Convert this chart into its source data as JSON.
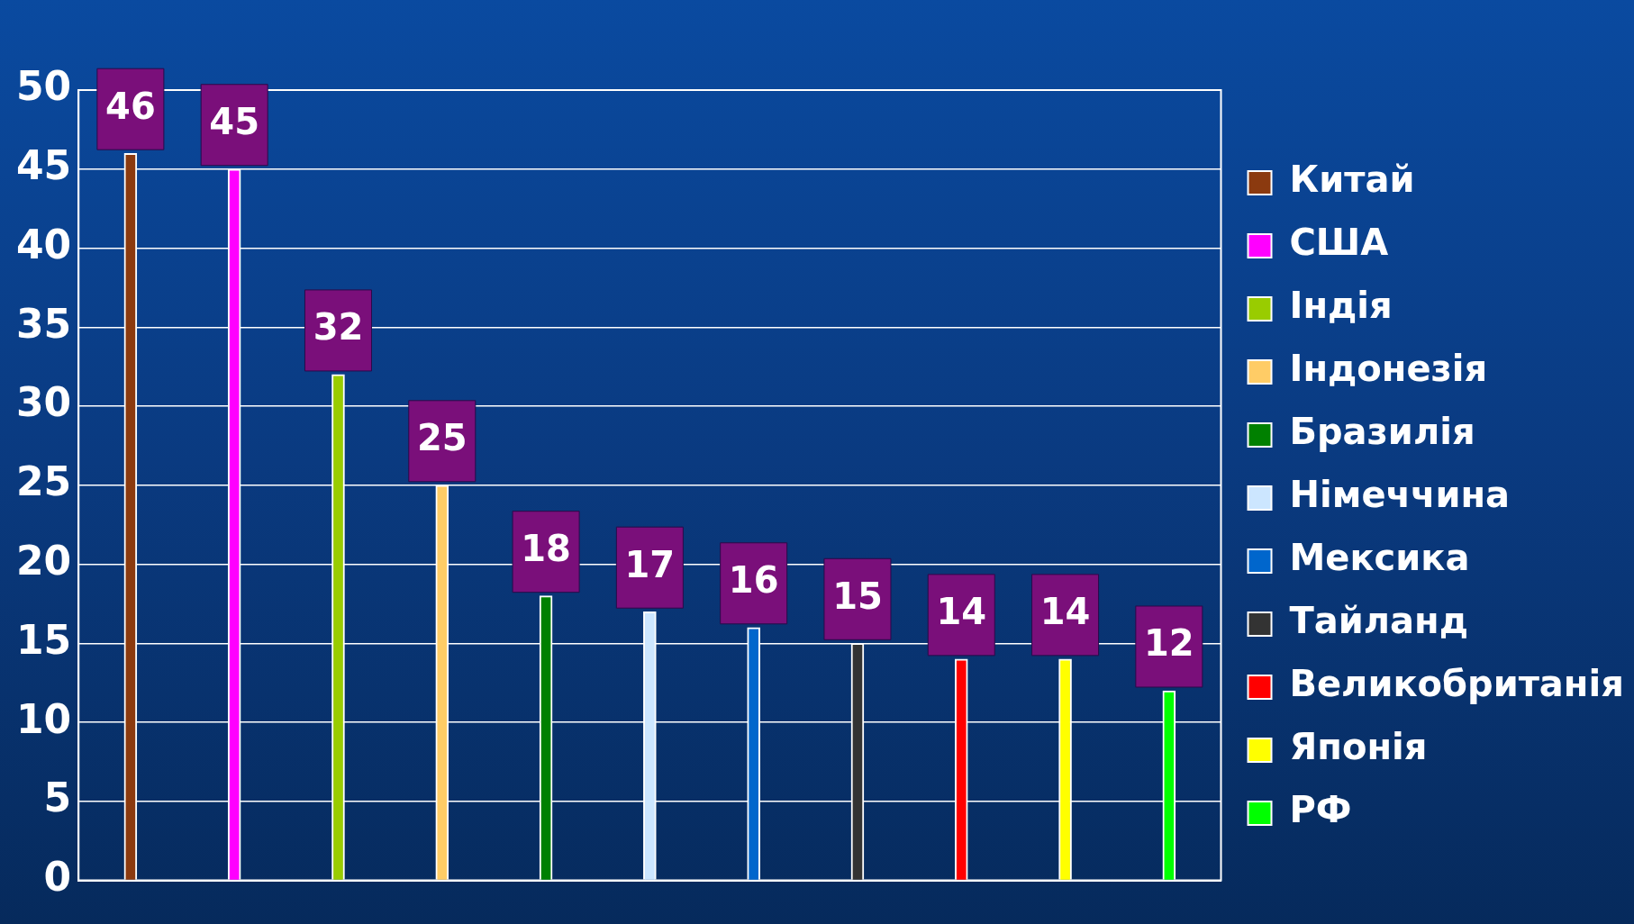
{
  "chart_data": {
    "type": "bar",
    "categories": [
      null,
      null,
      null,
      null,
      null,
      null,
      null,
      null,
      null,
      null,
      null
    ],
    "series": [
      {
        "name": "Китай",
        "color": "#8b3a0f",
        "values": [
          46,
          null,
          null,
          null,
          null,
          null,
          null,
          null,
          null,
          null,
          null
        ]
      },
      {
        "name": "США",
        "color": "#ff00ff",
        "values": [
          null,
          45,
          null,
          null,
          null,
          null,
          null,
          null,
          null,
          null,
          null
        ]
      },
      {
        "name": "Індія",
        "color": "#99cc00",
        "values": [
          null,
          null,
          32,
          null,
          null,
          null,
          null,
          null,
          null,
          null,
          null
        ]
      },
      {
        "name": "Індонезія",
        "color": "#ffcc66",
        "values": [
          null,
          null,
          null,
          25,
          null,
          null,
          null,
          null,
          null,
          null,
          null
        ]
      },
      {
        "name": "Бразилія",
        "color": "#008000",
        "values": [
          null,
          null,
          null,
          null,
          18,
          null,
          null,
          null,
          null,
          null,
          null
        ]
      },
      {
        "name": "Німеччина",
        "color": "#cce6ff",
        "values": [
          null,
          null,
          null,
          null,
          null,
          17,
          null,
          null,
          null,
          null,
          null
        ]
      },
      {
        "name": "Мексика",
        "color": "#0066cc",
        "values": [
          null,
          null,
          null,
          null,
          null,
          null,
          16,
          null,
          null,
          null,
          null
        ]
      },
      {
        "name": "Тайланд",
        "color": "#333333",
        "values": [
          null,
          null,
          null,
          null,
          null,
          null,
          null,
          15,
          null,
          null,
          null
        ]
      },
      {
        "name": "Великобританія",
        "color": "#ff0000",
        "values": [
          null,
          null,
          null,
          null,
          null,
          null,
          null,
          null,
          14,
          null,
          null
        ]
      },
      {
        "name": "Японія",
        "color": "#ffff00",
        "values": [
          null,
          null,
          null,
          null,
          null,
          null,
          null,
          null,
          null,
          14,
          null
        ]
      },
      {
        "name": "РФ",
        "color": "#00ff00",
        "values": [
          null,
          null,
          null,
          null,
          null,
          null,
          null,
          null,
          null,
          null,
          12
        ]
      }
    ],
    "ylim": [
      0,
      50
    ],
    "yticks": [
      0,
      5,
      10,
      15,
      20,
      25,
      30,
      35,
      40,
      45,
      50
    ],
    "grid": "y",
    "legend": "right",
    "data_labels": true
  }
}
